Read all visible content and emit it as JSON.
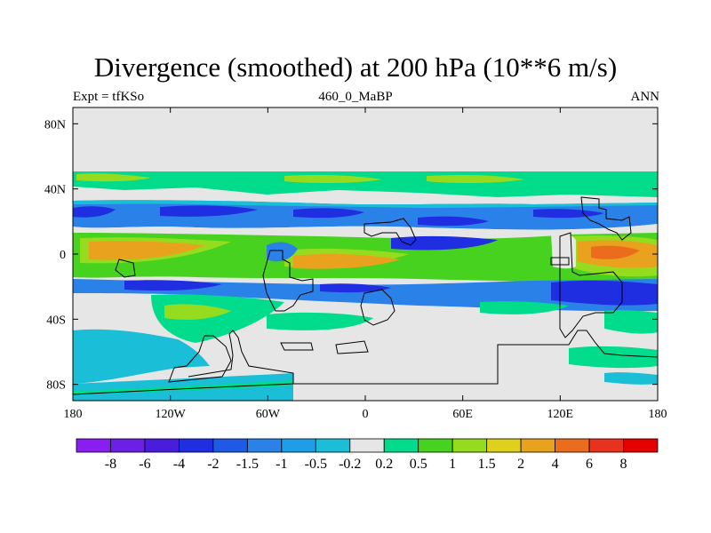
{
  "header": {
    "title": "Divergence (smoothed) at 200 hPa (10**6 m/s)",
    "left": "Expt = tfKSo",
    "center": "460_0_MaBP",
    "right": "ANN"
  },
  "chart_data": {
    "type": "heatmap",
    "title": "Divergence (smoothed) at 200 hPa (10**6 m/s)",
    "subtitle_left": "Expt = tfKSo",
    "subtitle_center": "460_0_MaBP",
    "subtitle_right": "ANN",
    "xlim": [
      -180,
      180
    ],
    "ylim": [
      -90,
      90
    ],
    "x_ticks": [
      -180,
      -120,
      -60,
      0,
      60,
      120,
      180
    ],
    "x_tick_labels": [
      "180",
      "120W",
      "60W",
      "0",
      "60E",
      "120E",
      "180"
    ],
    "y_ticks": [
      80,
      40,
      0,
      -40,
      -80
    ],
    "y_tick_labels": [
      "80N",
      "40N",
      "0",
      "40S",
      "80S"
    ],
    "colorbar": {
      "levels": [
        "-8",
        "-6",
        "-4",
        "-2",
        "-1.5",
        "-1",
        "-0.5",
        "-0.2",
        "0.2",
        "0.5",
        "1",
        "1.5",
        "2",
        "4",
        "6",
        "8"
      ],
      "colors": [
        "#8a1ef0",
        "#6c20e6",
        "#4a1cdc",
        "#1e2ee0",
        "#1e5ae6",
        "#2a82e8",
        "#1e9ee6",
        "#1abed6",
        "#e6e6e6",
        "#00dc8c",
        "#46d21e",
        "#96dc1e",
        "#e0d01e",
        "#e8a21e",
        "#ec6c1e",
        "#e6321e",
        "#e60000"
      ]
    },
    "fields": [
      {
        "lon": -180,
        "lat": 47,
        "value": 0.3,
        "label": "zonal green band ~45N"
      },
      {
        "lon": -155,
        "lat": 27,
        "value": -1.3,
        "label": "blue band 25N"
      },
      {
        "lon": -120,
        "lat": 8,
        "value": 2.0,
        "label": "tropical divergence west Pacific/Americas"
      },
      {
        "lon": -20,
        "lat": -4,
        "value": 2.6,
        "label": "tropical Atlantic/Africa"
      },
      {
        "lon": 20,
        "lat": 2,
        "value": -1.5,
        "label": "convergence over Africa"
      },
      {
        "lon": 145,
        "lat": 2,
        "value": 4.5,
        "label": "maximum divergence west Pacific"
      },
      {
        "lon": 135,
        "lat": -25,
        "value": -2.5,
        "label": "strong convergence SH subtropics"
      },
      {
        "lon": -130,
        "lat": -38,
        "value": 0.8,
        "label": "SH midlatitude divergence"
      },
      {
        "lon": -165,
        "lat": -70,
        "value": -0.7,
        "label": "Southern Ocean convergence"
      },
      {
        "lon": 0,
        "lat": -70,
        "value": 0.0,
        "label": "Antarctica neutral"
      }
    ]
  }
}
